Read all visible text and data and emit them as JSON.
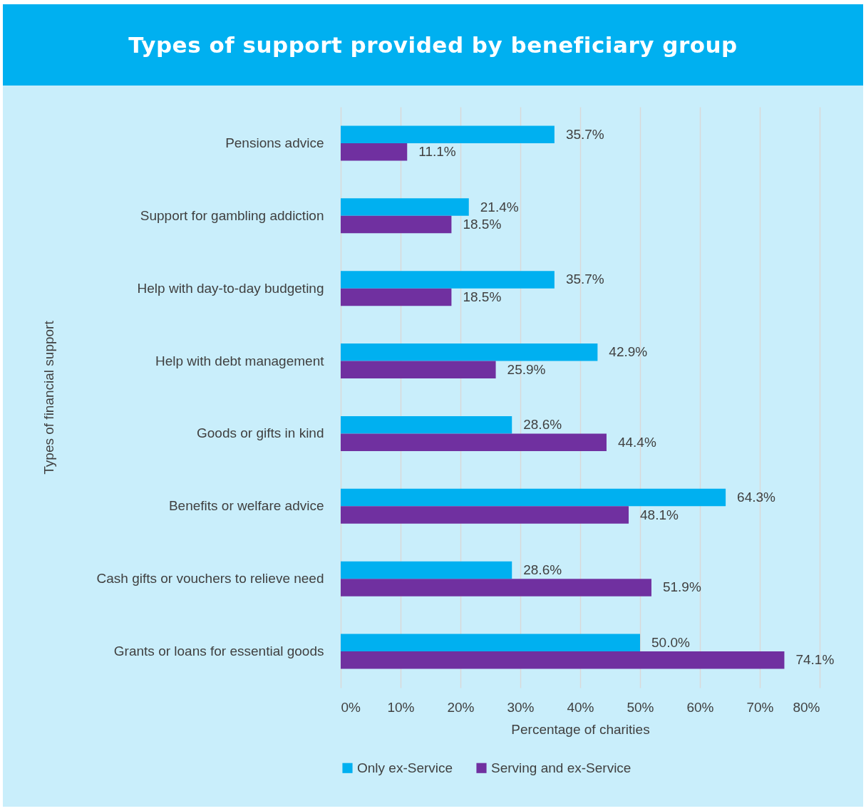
{
  "chart_data": {
    "type": "bar",
    "orientation": "horizontal",
    "title": "Types of support provided by beneficiary group",
    "xlabel": "Percentage of charities",
    "ylabel": "Types of financial support",
    "categories": [
      "Pensions advice",
      "Support for gambling addiction",
      "Help with day-to-day budgeting",
      "Help with debt management",
      "Goods or gifts in kind",
      "Benefits or welfare advice",
      "Cash gifts or vouchers to relieve need",
      "Grants or loans for essential goods"
    ],
    "series": [
      {
        "name": "Only ex-Service",
        "color": "#00b0f0",
        "values": [
          35.7,
          21.4,
          35.7,
          42.9,
          28.6,
          64.3,
          28.6,
          50.0
        ],
        "value_labels": [
          "35.7%",
          "21.4%",
          "35.7%",
          "42.9%",
          "28.6%",
          "64.3%",
          "28.6%",
          "50.0%"
        ]
      },
      {
        "name": "Serving and ex-Service",
        "color": "#7030a0",
        "values": [
          11.1,
          18.5,
          18.5,
          25.9,
          44.4,
          48.1,
          51.9,
          74.1
        ],
        "value_labels": [
          "11.1%",
          "18.5%",
          "18.5%",
          "25.9%",
          "44.4%",
          "48.1%",
          "51.9%",
          "74.1%"
        ]
      }
    ],
    "xlim": [
      0,
      80
    ],
    "xticks": [
      {
        "value": 0,
        "label": "0%"
      },
      {
        "value": 10,
        "label": "10%"
      },
      {
        "value": 20,
        "label": "20%"
      },
      {
        "value": 30,
        "label": "30%"
      },
      {
        "value": 40,
        "label": "40%"
      },
      {
        "value": 50,
        "label": "50%"
      },
      {
        "value": 60,
        "label": "60%"
      },
      {
        "value": 70,
        "label": "70%"
      },
      {
        "value": 80,
        "label": "80%"
      }
    ],
    "grid": "x",
    "legend": "bottom"
  }
}
